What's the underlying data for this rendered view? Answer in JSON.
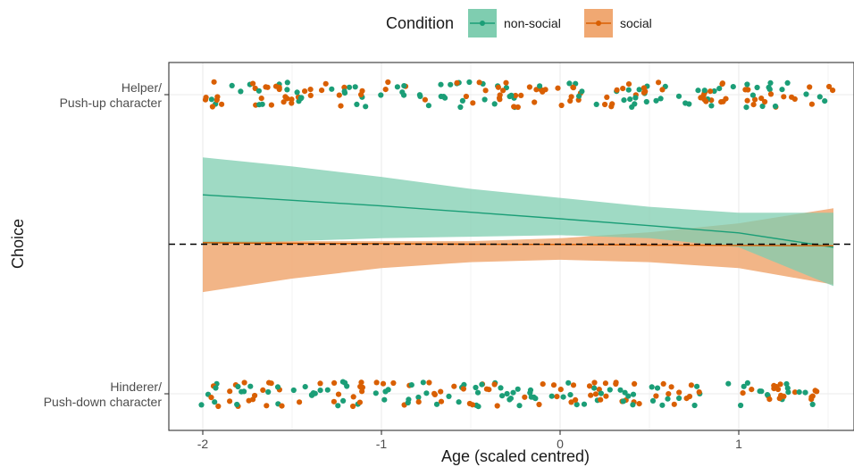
{
  "chart_data": {
    "type": "scatter",
    "xlabel": "Age (scaled centred)",
    "ylabel": "Choice",
    "xlim": [
      -2.2,
      1.65
    ],
    "ylim": [
      -0.03,
      1.03
    ],
    "xticks": [
      -2,
      -1,
      0,
      1
    ],
    "xtick_labels": [
      "-2",
      "-1",
      "0",
      "1"
    ],
    "y_categories": [
      {
        "value": 1,
        "lines": [
          "Helper/",
          "Push-up character"
        ]
      },
      {
        "value": 0,
        "lines": [
          "Hinderer/",
          "Push-down character"
        ]
      }
    ],
    "reference_line": {
      "y": 0.5,
      "style": "dashed",
      "color": "#000000"
    },
    "grid": true,
    "legend": {
      "title": "Condition",
      "position": "top"
    },
    "series": [
      {
        "name": "non-social",
        "color": "#1b9e77",
        "ribbon_color": "#7fcdb0",
        "fit": {
          "x": [
            -2,
            -1.5,
            -1,
            -0.5,
            0,
            0.5,
            1,
            1.53
          ],
          "y": [
            0.665,
            0.647,
            0.628,
            0.607,
            0.585,
            0.562,
            0.538,
            0.49
          ],
          "lower": [
            0.5,
            0.51,
            0.52,
            0.525,
            0.53,
            0.52,
            0.49,
            0.36
          ],
          "upper": [
            0.79,
            0.76,
            0.725,
            0.685,
            0.655,
            0.625,
            0.605,
            0.605
          ]
        }
      },
      {
        "name": "social",
        "color": "#d95f02",
        "ribbon_color": "#f0a872",
        "fit": {
          "x": [
            -2,
            -1.5,
            -1,
            -0.5,
            0,
            0.5,
            1,
            1.53
          ],
          "y": [
            0.505,
            0.503,
            0.502,
            0.5,
            0.499,
            0.497,
            0.496,
            0.495
          ],
          "lower": [
            0.34,
            0.385,
            0.42,
            0.44,
            0.448,
            0.44,
            0.42,
            0.365
          ],
          "upper": [
            0.51,
            0.51,
            0.51,
            0.51,
            0.52,
            0.54,
            0.57,
            0.62
          ]
        }
      }
    ]
  }
}
